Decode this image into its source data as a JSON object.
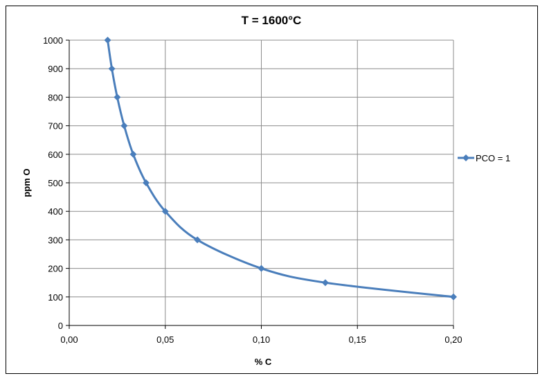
{
  "chart_data": {
    "type": "line",
    "title": "T = 1600°C",
    "xlabel": "% C",
    "ylabel": "ppm O",
    "xlim": [
      0,
      0.2
    ],
    "ylim": [
      0,
      1000
    ],
    "x_ticks": [
      0,
      0.05,
      0.1,
      0.15,
      0.2
    ],
    "x_tick_labels": [
      "0,00",
      "0,05",
      "0,10",
      "0,15",
      "0,20"
    ],
    "y_ticks": [
      0,
      100,
      200,
      300,
      400,
      500,
      600,
      700,
      800,
      900,
      1000
    ],
    "y_tick_labels": [
      "0",
      "100",
      "200",
      "300",
      "400",
      "500",
      "600",
      "700",
      "800",
      "900",
      "1000"
    ],
    "grid": true,
    "legend_position": "right",
    "series": [
      {
        "name": "PCO = 1",
        "color": "#4a7ebb",
        "marker": "diamond",
        "x": [
          0.02,
          0.0222,
          0.025,
          0.0286,
          0.0333,
          0.04,
          0.05,
          0.0667,
          0.1,
          0.1333,
          0.2
        ],
        "y": [
          1000,
          900,
          800,
          700,
          600,
          500,
          400,
          300,
          200,
          150,
          100
        ]
      }
    ]
  }
}
